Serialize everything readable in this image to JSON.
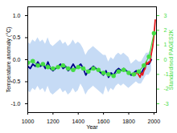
{
  "chart_data": {
    "type": "line",
    "xlabel": "Year",
    "ylabel": "Temperature anomaly (°C)",
    "y2label": "Standardised PAGES2K",
    "xlim": [
      1000,
      2020
    ],
    "xticks": [
      1000,
      1200,
      1400,
      1600,
      1800,
      2000
    ],
    "ylim": [
      -1.2,
      1.2
    ],
    "yticks": [
      {
        "value": -1,
        "label": "-1.0"
      },
      -0.5,
      {
        "value": 0,
        "label": "0.0"
      },
      0.5,
      {
        "value": 1,
        "label": "1.0"
      }
    ],
    "y2lim": [
      -3.6,
      3.6
    ],
    "y2ticks": [
      -3,
      -2,
      -1,
      0,
      1,
      2,
      3
    ],
    "band": {
      "color": "#c6dbf5",
      "x": [
        1000,
        1020,
        1040,
        1060,
        1080,
        1100,
        1120,
        1140,
        1160,
        1180,
        1200,
        1220,
        1240,
        1260,
        1280,
        1300,
        1320,
        1340,
        1360,
        1380,
        1400,
        1420,
        1440,
        1460,
        1480,
        1500,
        1520,
        1540,
        1560,
        1580,
        1600,
        1620,
        1640,
        1660,
        1680,
        1700,
        1720,
        1740,
        1760,
        1780,
        1800,
        1820,
        1840,
        1860,
        1880,
        1900,
        1920,
        1940,
        1960,
        1980
      ],
      "lower": [
        -0.7,
        -0.75,
        -0.65,
        -0.7,
        -0.6,
        -0.7,
        -0.65,
        -0.75,
        -0.6,
        -0.75,
        -0.8,
        -0.75,
        -0.7,
        -0.65,
        -0.75,
        -0.7,
        -0.8,
        -0.75,
        -0.65,
        -0.75,
        -0.7,
        -0.55,
        -0.65,
        -0.8,
        -0.7,
        -0.65,
        -0.6,
        -0.65,
        -0.7,
        -0.75,
        -0.8,
        -0.6,
        -0.75,
        -0.65,
        -0.7,
        -0.6,
        -0.55,
        -0.6,
        -0.55,
        -0.6,
        -0.65,
        -0.6,
        -0.55,
        -0.5,
        -0.55,
        -0.55,
        -0.45,
        -0.35,
        -0.35,
        -0.25
      ],
      "upper": [
        0.4,
        0.35,
        0.45,
        0.4,
        0.5,
        0.4,
        0.45,
        0.35,
        0.5,
        0.35,
        0.3,
        0.35,
        0.4,
        0.45,
        0.35,
        0.4,
        0.3,
        0.35,
        0.45,
        0.35,
        0.4,
        0.35,
        0.25,
        0.1,
        0.2,
        0.25,
        0.3,
        0.25,
        0.2,
        0.15,
        0.1,
        0.1,
        -0.05,
        0.05,
        0.0,
        0.1,
        0.15,
        0.1,
        0.15,
        0.1,
        0.05,
        -0.1,
        -0.05,
        0.0,
        -0.05,
        -0.05,
        0.05,
        0.15,
        0.15,
        0.25
      ]
    },
    "series": [
      {
        "color": "#00008b",
        "x": [
          1000,
          1020,
          1040,
          1060,
          1080,
          1100,
          1120,
          1140,
          1160,
          1180,
          1200,
          1220,
          1240,
          1260,
          1280,
          1300,
          1320,
          1340,
          1360,
          1380,
          1400,
          1420,
          1440,
          1460,
          1480,
          1500,
          1520,
          1540,
          1560,
          1580,
          1600,
          1620,
          1640,
          1660,
          1680,
          1700,
          1720,
          1740,
          1760,
          1780,
          1800,
          1820,
          1840,
          1860,
          1880,
          1900,
          1920,
          1940,
          1960,
          1980
        ],
        "values": [
          -0.15,
          -0.2,
          -0.1,
          -0.15,
          -0.05,
          -0.15,
          -0.1,
          -0.2,
          -0.05,
          -0.2,
          -0.25,
          -0.2,
          -0.15,
          -0.1,
          -0.2,
          -0.15,
          -0.25,
          -0.2,
          -0.1,
          -0.2,
          -0.15,
          -0.1,
          -0.2,
          -0.35,
          -0.25,
          -0.2,
          -0.15,
          -0.2,
          -0.25,
          -0.3,
          -0.35,
          -0.25,
          -0.4,
          -0.3,
          -0.35,
          -0.25,
          -0.2,
          -0.25,
          -0.2,
          -0.25,
          -0.3,
          -0.35,
          -0.3,
          -0.25,
          -0.3,
          -0.3,
          -0.2,
          -0.1,
          -0.1,
          0.0
        ]
      },
      {
        "color": "#e41a1c",
        "x": [
          1850,
          1860,
          1870,
          1880,
          1890,
          1900,
          1910,
          1920,
          1930,
          1940,
          1950,
          1960,
          1970,
          1980,
          1990,
          2000,
          2010
        ],
        "values": [
          -0.35,
          -0.3,
          -0.3,
          -0.35,
          -0.4,
          -0.3,
          -0.35,
          -0.25,
          -0.2,
          -0.05,
          -0.1,
          -0.05,
          -0.05,
          0.15,
          0.3,
          0.55,
          0.9
        ]
      },
      {
        "color": "#44dd44",
        "axis": "y2",
        "marker": "circle",
        "x": [
          1000,
          1040,
          1080,
          1120,
          1160,
          1200,
          1240,
          1280,
          1320,
          1360,
          1400,
          1440,
          1480,
          1520,
          1560,
          1600,
          1640,
          1680,
          1720,
          1760,
          1800,
          1840,
          1880,
          1920,
          1960,
          2000
        ],
        "values": [
          -0.2,
          -0.1,
          -0.4,
          -0.3,
          -0.5,
          -0.6,
          -0.5,
          -0.4,
          -0.6,
          -0.7,
          -0.5,
          -0.6,
          -0.8,
          -0.6,
          -0.7,
          -0.9,
          -1.0,
          -1.1,
          -0.8,
          -0.7,
          -0.9,
          -1.0,
          -0.8,
          -0.4,
          0.2,
          1.8
        ]
      }
    ]
  }
}
